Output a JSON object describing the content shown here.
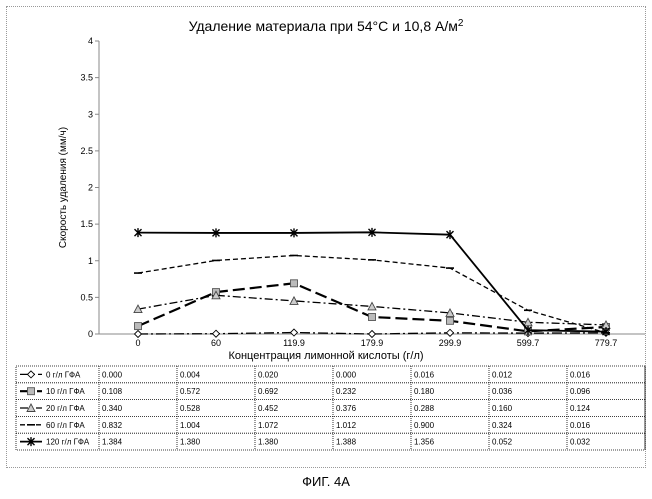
{
  "chart_data": {
    "type": "line",
    "title": "Удаление материала при 54°С и 10,8 А/м",
    "title_sup": "2",
    "xlabel": "Концентрация лимонной кислоты (г/л)",
    "ylabel": "Скорость удаления (мм/ч)",
    "categories": [
      "0",
      "60",
      "119.9",
      "179.9",
      "299.9",
      "599.7",
      "779.7"
    ],
    "ylim": [
      0,
      4
    ],
    "yticks": [
      "0",
      "0.5",
      "1",
      "1.5",
      "2",
      "2.5",
      "3",
      "3.5",
      "4"
    ],
    "grid": false,
    "legend": "data-table below plot",
    "series": [
      {
        "name": "0 г/л ГФА",
        "marker": "diamond",
        "dash": "10,3,2,3",
        "width": 1.3,
        "values": [
          0.0,
          0.004,
          0.02,
          0.0,
          0.016,
          0.012,
          0.016
        ],
        "labels": [
          "0.000",
          "0.004",
          "0.020",
          "0.000",
          "0.016",
          "0.012",
          "0.016"
        ]
      },
      {
        "name": "10 г/л ГФА",
        "marker": "square",
        "dash": "12,5",
        "width": 2.2,
        "values": [
          0.108,
          0.572,
          0.692,
          0.232,
          0.18,
          0.036,
          0.096
        ],
        "labels": [
          "0.108",
          "0.572",
          "0.692",
          "0.232",
          "0.180",
          "0.036",
          "0.096"
        ]
      },
      {
        "name": "20 г/л ГФА",
        "marker": "triangle",
        "dash": "8,3,2,3",
        "width": 1.3,
        "values": [
          0.34,
          0.528,
          0.452,
          0.376,
          0.288,
          0.16,
          0.124
        ],
        "labels": [
          "0.340",
          "0.528",
          "0.452",
          "0.376",
          "0.288",
          "0.160",
          "0.124"
        ]
      },
      {
        "name": "60 г/л ГФА",
        "marker": "dash",
        "dash": "5,3",
        "width": 1.3,
        "values": [
          0.832,
          1.004,
          1.072,
          1.012,
          0.9,
          0.324,
          0.016
        ],
        "labels": [
          "0.832",
          "1.004",
          "1.072",
          "1.012",
          "0.900",
          "0.324",
          "0.016"
        ]
      },
      {
        "name": "120 г/л ГФА",
        "marker": "star",
        "dash": "",
        "width": 1.8,
        "values": [
          1.384,
          1.38,
          1.38,
          1.388,
          1.356,
          0.052,
          0.032
        ],
        "labels": [
          "1.384",
          "1.380",
          "1.380",
          "1.388",
          "1.356",
          "0.052",
          "0.032"
        ]
      }
    ]
  },
  "caption": "ФИГ. 4А"
}
